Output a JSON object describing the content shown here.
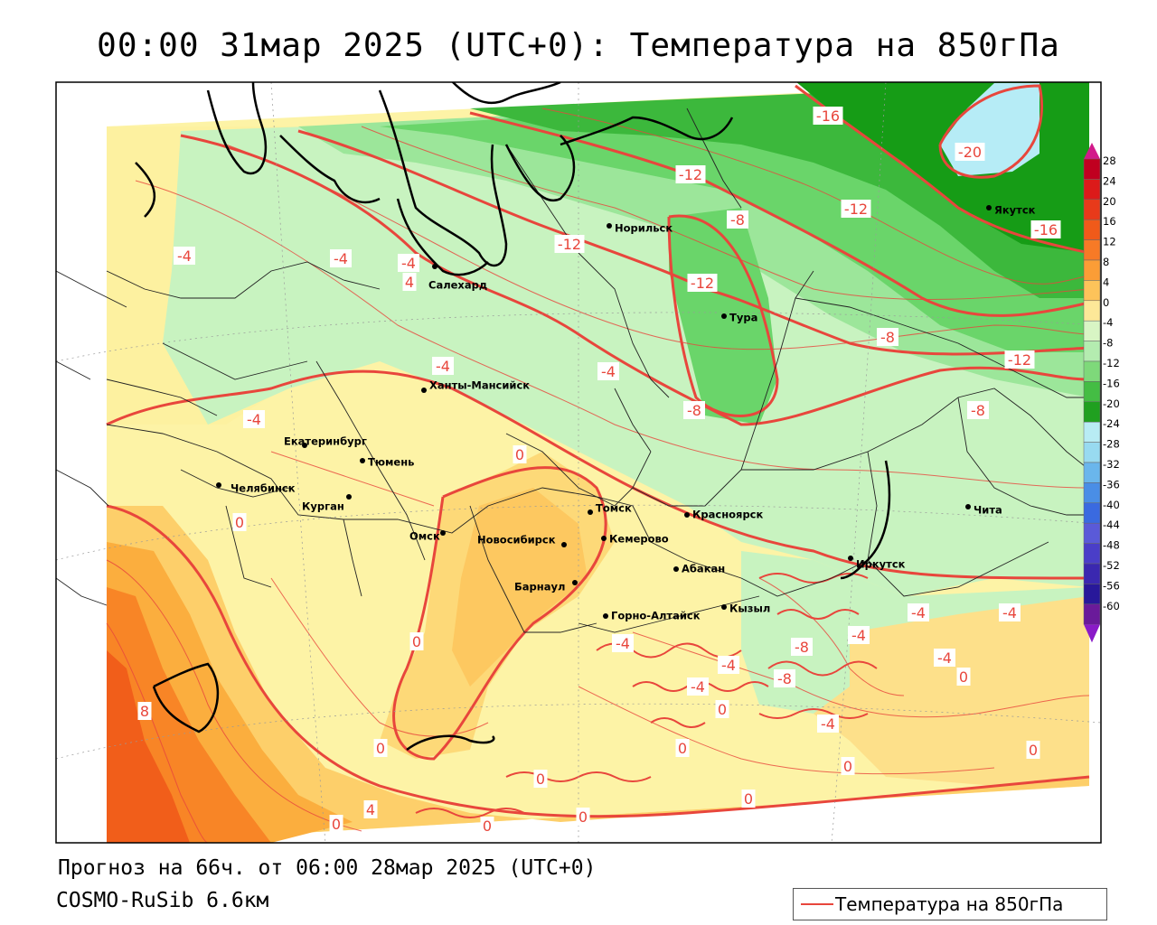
{
  "title": "00:00 31мар 2025 (UTC+0): Температура на 850гПа",
  "footer": {
    "forecast": "Прогноз на 66ч. от 06:00 28мар 2025 (UTC+0)",
    "model": "COSMO-RuSib 6.6км"
  },
  "legend": {
    "label": "Температура на 850гПа",
    "line_color": "#e8463c"
  },
  "colorbar": {
    "labels": [
      "28",
      "24",
      "20",
      "16",
      "12",
      "8",
      "4",
      "0",
      "-4",
      "-8",
      "-12",
      "-16",
      "-20",
      "-24",
      "-28",
      "-32",
      "-36",
      "-40",
      "-44",
      "-48",
      "-52",
      "-56",
      "-60"
    ],
    "colors": [
      "#c00020",
      "#dc1a1a",
      "#e83a1a",
      "#f05a1a",
      "#f77a26",
      "#fb9d36",
      "#fdc35a",
      "#fde898",
      "#d8f5c4",
      "#b4ecb0",
      "#7ed97a",
      "#44bd44",
      "#20a020",
      "#b8ecf4",
      "#98daf0",
      "#6ab6ec",
      "#4a8ee6",
      "#3a6ae0",
      "#5a5ad8",
      "#4a3ec8",
      "#3a28b0",
      "#28189a",
      "#6a1a9a"
    ]
  },
  "cities": [
    {
      "name": "Норильск",
      "icon": "city-dot-icon"
    },
    {
      "name": "Якутск",
      "icon": "city-dot-icon"
    },
    {
      "name": "Салехард",
      "icon": "city-dot-icon"
    },
    {
      "name": "Тура",
      "icon": "city-dot-icon"
    },
    {
      "name": "Ханты-Мансийск",
      "icon": "city-dot-icon"
    },
    {
      "name": "Екатеринбург",
      "icon": "city-dot-icon"
    },
    {
      "name": "Тюмень",
      "icon": "city-dot-icon"
    },
    {
      "name": "Челябинск",
      "icon": "city-dot-icon"
    },
    {
      "name": "Курган",
      "icon": "city-dot-icon"
    },
    {
      "name": "Омск",
      "icon": "city-dot-icon"
    },
    {
      "name": "Новосибирск",
      "icon": "city-dot-icon"
    },
    {
      "name": "Томск",
      "icon": "city-dot-icon"
    },
    {
      "name": "Кемерово",
      "icon": "city-dot-icon"
    },
    {
      "name": "Красноярск",
      "icon": "city-dot-icon"
    },
    {
      "name": "Абакан",
      "icon": "city-dot-icon"
    },
    {
      "name": "Иркутск",
      "icon": "city-dot-icon"
    },
    {
      "name": "Барнаул",
      "icon": "city-dot-icon"
    },
    {
      "name": "Горно-Алтайск",
      "icon": "city-dot-icon"
    },
    {
      "name": "Кызыл",
      "icon": "city-dot-icon"
    },
    {
      "name": "Чита",
      "icon": "city-dot-icon"
    }
  ],
  "contour_labels": [
    "-16",
    "-20",
    "-12",
    "-12",
    "-8",
    "-12",
    "-12",
    "-16",
    "-4",
    "-4",
    "-4",
    "4",
    "-4",
    "-4",
    "-8",
    "-12",
    "-4",
    "-8",
    "-8",
    "0",
    "0",
    "0",
    "-4",
    "-4",
    "-4",
    "-4",
    "-8",
    "-4",
    "-8",
    "-4",
    "-4",
    "0",
    "0",
    "0",
    "0",
    "0",
    "0",
    "0",
    "0",
    "0",
    "0",
    "8",
    "4",
    "0",
    "-4"
  ]
}
